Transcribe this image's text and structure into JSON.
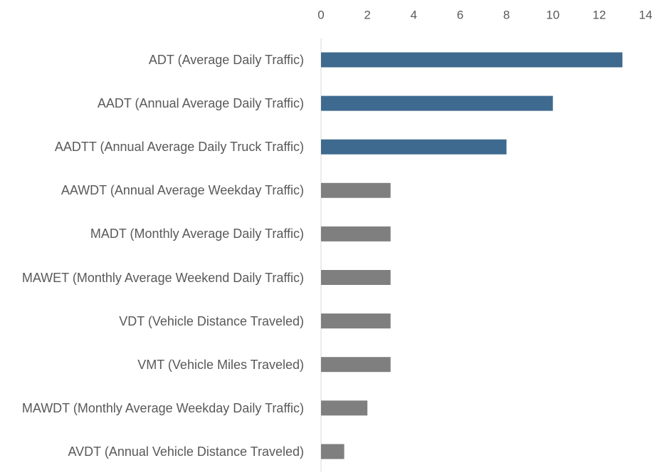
{
  "chart_data": {
    "type": "bar",
    "orientation": "horizontal",
    "categories": [
      "ADT (Average Daily Traffic)",
      "AADT (Annual Average Daily Traffic)",
      "AADTT (Annual Average Daily Truck Traffic)",
      "AAWDT (Annual Average Weekday Traffic)",
      "MADT (Monthly Average Daily Traffic)",
      "MAWET (Monthly Average Weekend Daily Traffic)",
      "VDT (Vehicle Distance Traveled)",
      "VMT (Vehicle Miles Traveled)",
      "MAWDT (Monthly Average Weekday Daily Traffic)",
      "AVDT (Annual Vehicle Distance Traveled)"
    ],
    "values": [
      13,
      10,
      8,
      3,
      3,
      3,
      3,
      3,
      2,
      1
    ],
    "colors": [
      "#3f6a8f",
      "#3f6a8f",
      "#3f6a8f",
      "#7f7f7f",
      "#7f7f7f",
      "#7f7f7f",
      "#7f7f7f",
      "#7f7f7f",
      "#7f7f7f",
      "#7f7f7f"
    ],
    "xlim": [
      0,
      14
    ],
    "xticks": [
      0,
      2,
      4,
      6,
      8,
      10,
      12,
      14
    ],
    "grid": false
  }
}
